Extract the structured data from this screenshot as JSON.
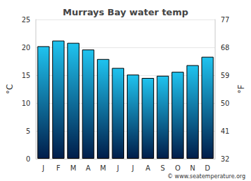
{
  "chart_data": {
    "type": "bar",
    "title": "Murrays Bay water temp",
    "categories": [
      "J",
      "F",
      "M",
      "A",
      "M",
      "J",
      "J",
      "A",
      "S",
      "O",
      "N",
      "D"
    ],
    "values": [
      20.2,
      21.2,
      20.8,
      19.6,
      17.9,
      16.3,
      15.1,
      14.5,
      14.9,
      15.6,
      16.8,
      18.3
    ],
    "color": "#1fc3ef",
    "ylim": [
      0,
      25
    ],
    "yticks": [
      0,
      5,
      10,
      15,
      20,
      25
    ],
    "ylabel": "°C",
    "y2lim": [
      32,
      77
    ],
    "y2ticks": [
      32,
      41,
      50,
      59,
      68,
      77
    ],
    "y2label": "°F",
    "grid": true,
    "annotations": [
      "© www.seatemperature.org"
    ]
  }
}
